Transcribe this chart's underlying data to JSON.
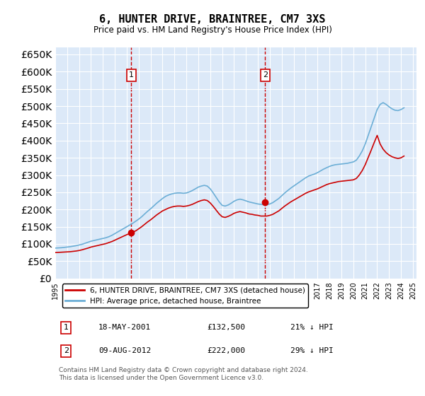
{
  "title": "6, HUNTER DRIVE, BRAINTREE, CM7 3XS",
  "subtitle": "Price paid vs. HM Land Registry's House Price Index (HPI)",
  "xlabel": "",
  "ylabel": "",
  "ylim": [
    0,
    670000
  ],
  "yticks": [
    0,
    50000,
    100000,
    150000,
    200000,
    250000,
    300000,
    350000,
    400000,
    450000,
    500000,
    550000,
    600000,
    650000
  ],
  "background_color": "#dce9f8",
  "plot_bg": "#dce9f8",
  "grid_color": "#ffffff",
  "hpi_color": "#6baed6",
  "price_color": "#cc0000",
  "sale1_date": 2001.38,
  "sale1_price": 132500,
  "sale2_date": 2012.61,
  "sale2_price": 222000,
  "legend_entry1": "6, HUNTER DRIVE, BRAINTREE, CM7 3XS (detached house)",
  "legend_entry2": "HPI: Average price, detached house, Braintree",
  "annotation1_label": "1",
  "annotation1_date": "18-MAY-2001",
  "annotation1_price": "£132,500",
  "annotation1_hpi": "21% ↓ HPI",
  "annotation2_label": "2",
  "annotation2_date": "09-AUG-2012",
  "annotation2_price": "£222,000",
  "annotation2_hpi": "29% ↓ HPI",
  "footer": "Contains HM Land Registry data © Crown copyright and database right 2024.\nThis data is licensed under the Open Government Licence v3.0.",
  "hpi_years": [
    1995,
    1995.25,
    1995.5,
    1995.75,
    1996,
    1996.25,
    1996.5,
    1996.75,
    1997,
    1997.25,
    1997.5,
    1997.75,
    1998,
    1998.25,
    1998.5,
    1998.75,
    1999,
    1999.25,
    1999.5,
    1999.75,
    2000,
    2000.25,
    2000.5,
    2000.75,
    2001,
    2001.25,
    2001.5,
    2001.75,
    2002,
    2002.25,
    2002.5,
    2002.75,
    2003,
    2003.25,
    2003.5,
    2003.75,
    2004,
    2004.25,
    2004.5,
    2004.75,
    2005,
    2005.25,
    2005.5,
    2005.75,
    2006,
    2006.25,
    2006.5,
    2006.75,
    2007,
    2007.25,
    2007.5,
    2007.75,
    2008,
    2008.25,
    2008.5,
    2008.75,
    2009,
    2009.25,
    2009.5,
    2009.75,
    2010,
    2010.25,
    2010.5,
    2010.75,
    2011,
    2011.25,
    2011.5,
    2011.75,
    2012,
    2012.25,
    2012.5,
    2012.75,
    2013,
    2013.25,
    2013.5,
    2013.75,
    2014,
    2014.25,
    2014.5,
    2014.75,
    2015,
    2015.25,
    2015.5,
    2015.75,
    2016,
    2016.25,
    2016.5,
    2016.75,
    2017,
    2017.25,
    2017.5,
    2017.75,
    2018,
    2018.25,
    2018.5,
    2018.75,
    2019,
    2019.25,
    2019.5,
    2019.75,
    2020,
    2020.25,
    2020.5,
    2020.75,
    2021,
    2021.25,
    2021.5,
    2021.75,
    2022,
    2022.25,
    2022.5,
    2022.75,
    2023,
    2023.25,
    2023.5,
    2023.75,
    2024,
    2024.25
  ],
  "hpi_values": [
    88000,
    88500,
    89000,
    90000,
    91000,
    92000,
    93500,
    95000,
    97000,
    99000,
    102000,
    105000,
    108000,
    110000,
    112000,
    114000,
    116000,
    118000,
    121000,
    125000,
    130000,
    135000,
    140000,
    145000,
    150000,
    155000,
    160000,
    166000,
    172000,
    179000,
    187000,
    195000,
    202000,
    210000,
    218000,
    225000,
    232000,
    238000,
    242000,
    245000,
    247000,
    248000,
    248000,
    247000,
    248000,
    251000,
    255000,
    260000,
    265000,
    268000,
    270000,
    268000,
    260000,
    248000,
    235000,
    222000,
    212000,
    210000,
    213000,
    218000,
    224000,
    228000,
    230000,
    228000,
    225000,
    222000,
    220000,
    218000,
    216000,
    215000,
    214000,
    214000,
    216000,
    220000,
    226000,
    232000,
    240000,
    248000,
    255000,
    262000,
    268000,
    274000,
    280000,
    286000,
    292000,
    297000,
    300000,
    303000,
    307000,
    312000,
    317000,
    321000,
    325000,
    328000,
    330000,
    331000,
    332000,
    333000,
    334000,
    336000,
    338000,
    343000,
    355000,
    370000,
    390000,
    415000,
    440000,
    465000,
    490000,
    505000,
    510000,
    505000,
    498000,
    492000,
    488000,
    487000,
    490000,
    495000
  ],
  "price_years": [
    1995,
    1995.25,
    1995.5,
    1995.75,
    1996,
    1996.25,
    1996.5,
    1996.75,
    1997,
    1997.25,
    1997.5,
    1997.75,
    1998,
    1998.25,
    1998.5,
    1998.75,
    1999,
    1999.25,
    1999.5,
    1999.75,
    2000,
    2000.25,
    2000.5,
    2000.75,
    2001,
    2001.25,
    2001.5,
    2001.75,
    2002,
    2002.25,
    2002.5,
    2002.75,
    2003,
    2003.25,
    2003.5,
    2003.75,
    2004,
    2004.25,
    2004.5,
    2004.75,
    2005,
    2005.25,
    2005.5,
    2005.75,
    2006,
    2006.25,
    2006.5,
    2006.75,
    2007,
    2007.25,
    2007.5,
    2007.75,
    2008,
    2008.25,
    2008.5,
    2008.75,
    2009,
    2009.25,
    2009.5,
    2009.75,
    2010,
    2010.25,
    2010.5,
    2010.75,
    2011,
    2011.25,
    2011.5,
    2011.75,
    2012,
    2012.25,
    2012.5,
    2012.75,
    2013,
    2013.25,
    2013.5,
    2013.75,
    2014,
    2014.25,
    2014.5,
    2014.75,
    2015,
    2015.25,
    2015.5,
    2015.75,
    2016,
    2016.25,
    2016.5,
    2016.75,
    2017,
    2017.25,
    2017.5,
    2017.75,
    2018,
    2018.25,
    2018.5,
    2018.75,
    2019,
    2019.25,
    2019.5,
    2019.75,
    2020,
    2020.25,
    2020.5,
    2020.75,
    2021,
    2021.25,
    2021.5,
    2021.75,
    2022,
    2022.25,
    2022.5,
    2022.75,
    2023,
    2023.25,
    2023.5,
    2023.75,
    2024,
    2024.25
  ],
  "price_values": [
    75000,
    75500,
    76000,
    76500,
    77000,
    77500,
    78500,
    79500,
    81000,
    83000,
    85500,
    88000,
    91000,
    93000,
    95000,
    97000,
    99000,
    101000,
    104000,
    107000,
    111000,
    115000,
    119000,
    123000,
    127000,
    130000,
    134000,
    138000,
    144000,
    150000,
    157000,
    164000,
    170000,
    177000,
    184000,
    190000,
    196000,
    200000,
    204000,
    207000,
    209000,
    210000,
    210000,
    209000,
    210000,
    212000,
    215000,
    219000,
    223000,
    226000,
    228000,
    226000,
    219000,
    209000,
    198000,
    187000,
    179000,
    177000,
    180000,
    184000,
    189000,
    192000,
    194000,
    192000,
    190000,
    187000,
    186000,
    184000,
    183000,
    181000,
    181000,
    181000,
    183000,
    186000,
    191000,
    196000,
    203000,
    210000,
    216000,
    222000,
    227000,
    232000,
    237000,
    242000,
    247000,
    251000,
    254000,
    257000,
    260000,
    264000,
    268000,
    272000,
    275000,
    277000,
    279000,
    281000,
    282000,
    283000,
    284000,
    285000,
    286000,
    290000,
    300000,
    313000,
    330000,
    351000,
    372000,
    394000,
    415000,
    390000,
    375000,
    365000,
    358000,
    353000,
    350000,
    348000,
    350000,
    355000
  ]
}
